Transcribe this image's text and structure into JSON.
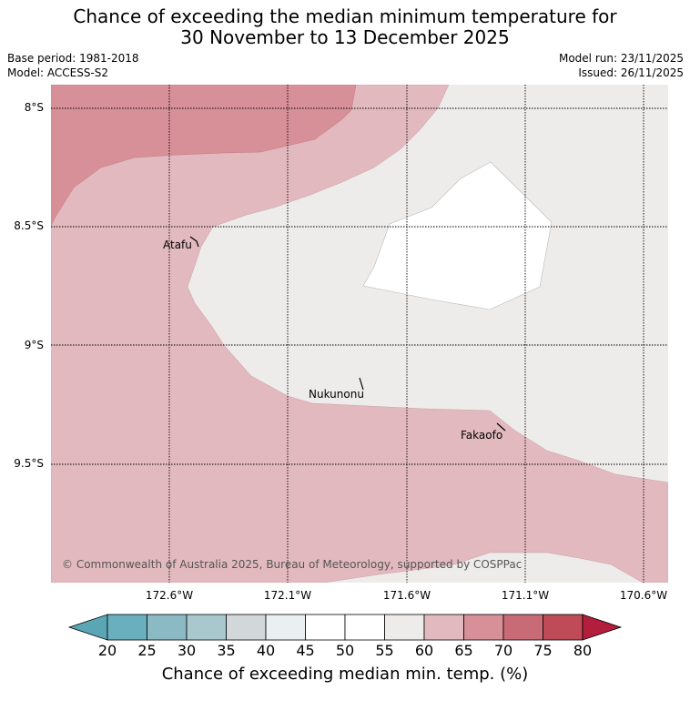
{
  "title": {
    "line1": "Chance of exceeding the median minimum temperature for",
    "line2": "30 November to 13 December 2025"
  },
  "meta": {
    "base_period": "Base period: 1981-2018",
    "model": "Model: ACCESS-S2",
    "model_run": "Model run: 23/11/2025",
    "issued": "Issued: 26/11/2025"
  },
  "map": {
    "lat_labels": [
      "8°S",
      "8.5°S",
      "9°S",
      "9.5°S"
    ],
    "lon_labels": [
      "172.6°W",
      "172.1°W",
      "171.6°W",
      "171.1°W",
      "170.6°W"
    ],
    "places": {
      "atafu": "Atafu",
      "nukunonu": "Nukunonu",
      "fakaofo": "Fakaofo"
    },
    "credit": "© Commonwealth of Australia 2025, Bureau of Meteorology, supported by COSPPac",
    "colors": {
      "band_55_60": "#eeeceb",
      "band_60_65": "#e2b9be",
      "band_65_70": "#d78f98",
      "band_50_55": "#ffffff"
    }
  },
  "colorbar": {
    "title": "Chance of exceeding median min. temp. (%)",
    "ticks": [
      "20",
      "25",
      "30",
      "35",
      "40",
      "45",
      "50",
      "55",
      "60",
      "65",
      "70",
      "75",
      "80"
    ],
    "colors": [
      "#5aa6b4",
      "#6aafbd",
      "#8cbac4",
      "#a8c8cd",
      "#d2d8d9",
      "#eaf0f1",
      "#ffffff",
      "#ffffff",
      "#eeeceb",
      "#e2b9be",
      "#d78f98",
      "#c96b76",
      "#bf4a58",
      "#b21e3b"
    ]
  }
}
